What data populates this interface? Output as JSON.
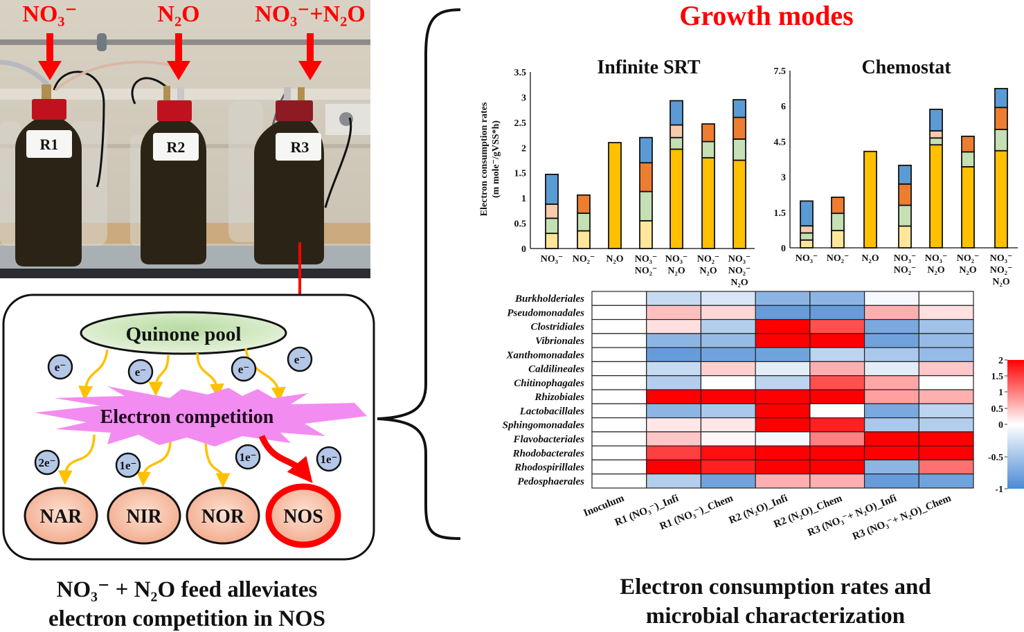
{
  "photo": {
    "feed_labels": [
      "NO₃⁻",
      "N₂O",
      "NO₃⁻+N₂O"
    ],
    "reactor_labels": [
      "R1",
      "R2",
      "R3"
    ]
  },
  "mechanism": {
    "quinone_pool": "Quinone pool",
    "electron": "e⁻",
    "competition": "Electron competition",
    "transfer_labels": [
      "2e⁻",
      "1e⁻",
      "1e⁻",
      "1e⁻"
    ],
    "enzymes": [
      "NAR",
      "NIR",
      "NOR",
      "NOS"
    ],
    "highlight_color": "#ff0000"
  },
  "left_caption": [
    "NO₃⁻ + N₂O feed alleviates",
    "electron competition in NOS"
  ],
  "right_caption": [
    "Electron consumption rates and",
    "microbial characterization"
  ],
  "growth_modes_title": "Growth modes",
  "segment_colors": [
    "#ffe699",
    "#ffc000",
    "#c5e0b4",
    "#f8cbad",
    "#ed7d31",
    "#5b9bd5"
  ],
  "chart_data": [
    {
      "type": "bar",
      "stacked": true,
      "title": "Infinite SRT",
      "ylabel": [
        "Electron consumption rates",
        "(m mole⁻/gVSS*h)"
      ],
      "ylim": [
        0,
        3.5
      ],
      "yticks": [
        "0",
        "0.5",
        "1",
        "1.5",
        "2",
        "2.5",
        "3",
        "3.5"
      ],
      "categories": [
        [
          "NO₃⁻"
        ],
        [
          "NO₂⁻"
        ],
        [
          "N₂O"
        ],
        [
          "NO₃⁻",
          "NO₂⁻"
        ],
        [
          "NO₃⁻",
          "N₂O"
        ],
        [
          "NO₂⁻",
          "N₂O"
        ],
        [
          "NO₃⁻",
          "NO₂⁻",
          "N₂O"
        ]
      ],
      "series": [
        {
          "color": "#ffe699",
          "values": [
            0.3,
            0.35,
            0,
            0.55,
            0,
            0,
            0
          ]
        },
        {
          "color": "#ffc000",
          "values": [
            0,
            0,
            2.1,
            0,
            1.97,
            1.8,
            1.75
          ]
        },
        {
          "color": "#c5e0b4",
          "values": [
            0.3,
            0.35,
            0,
            0.58,
            0.23,
            0.32,
            0.42
          ]
        },
        {
          "color": "#f8cbad",
          "values": [
            0.28,
            0,
            0,
            0,
            0.25,
            0,
            0
          ]
        },
        {
          "color": "#ed7d31",
          "values": [
            0,
            0.36,
            0,
            0.57,
            0,
            0.35,
            0.43
          ]
        },
        {
          "color": "#5b9bd5",
          "values": [
            0.59,
            0,
            0,
            0.5,
            0.48,
            0,
            0.35
          ]
        }
      ]
    },
    {
      "type": "bar",
      "stacked": true,
      "title": "Chemostat",
      "ylim": [
        0,
        7.5
      ],
      "yticks": [
        "0",
        "1.5",
        "3",
        "4.5",
        "6",
        "7.5"
      ],
      "categories": [
        [
          "NO₃⁻"
        ],
        [
          "NO₂⁻"
        ],
        [
          "N₂O"
        ],
        [
          "NO₃⁻",
          "NO₂⁻"
        ],
        [
          "NO₃⁻",
          "N₂O"
        ],
        [
          "NO₂⁻",
          "N₂O"
        ],
        [
          "NO₃⁻",
          "NO₂⁻",
          "N₂O"
        ]
      ],
      "series": [
        {
          "color": "#ffe699",
          "values": [
            0.33,
            0.73,
            0,
            0.92,
            0,
            0,
            0
          ]
        },
        {
          "color": "#ffc000",
          "values": [
            0,
            0,
            4.08,
            0,
            4.36,
            3.43,
            4.11
          ]
        },
        {
          "color": "#c5e0b4",
          "values": [
            0.3,
            0.73,
            0,
            0.88,
            0.29,
            0.63,
            0.9
          ]
        },
        {
          "color": "#f8cbad",
          "values": [
            0.3,
            0,
            0,
            0,
            0.3,
            0,
            0
          ]
        },
        {
          "color": "#ed7d31",
          "values": [
            0,
            0.68,
            0,
            0.9,
            0,
            0.66,
            0.93
          ]
        },
        {
          "color": "#5b9bd5",
          "values": [
            1.05,
            0,
            0,
            0.79,
            0.91,
            0,
            0.8
          ]
        }
      ]
    },
    {
      "type": "heatmap",
      "rows": [
        "Burkholderiales",
        "Pseudomonadales",
        "Clostridiales",
        "Vibrionales",
        "Xanthomonadales",
        "Caldilineales",
        "Chitinophagales",
        "Rhizobiales",
        "Lactobacillales",
        "Sphingomonadales",
        "Flavobacteriales",
        "Rhodobacterales",
        "Rhodospirillales",
        "Pedosphaerales"
      ],
      "columns": [
        "Inoculum",
        "R1 (NO₃⁻)_Infi",
        "R1 (NO₃⁻)_Chem",
        "R2 (N₂O)_Infi",
        "R2 (N₂O)_Chem",
        "R3 (NO₃⁻+ N₂O)_Infi",
        "R3 (NO₃⁻+ N₂O)_Chem"
      ],
      "values": [
        [
          0,
          -0.3,
          -0.2,
          -0.6,
          -0.6,
          -0.05,
          0
        ],
        [
          0,
          0.4,
          0.25,
          -0.8,
          -0.8,
          0.5,
          0.2
        ],
        [
          0,
          0.2,
          -0.4,
          2,
          1.1,
          -0.7,
          -0.5
        ],
        [
          0,
          -0.6,
          -0.55,
          2,
          2,
          -0.75,
          -0.55
        ],
        [
          0,
          -0.8,
          -0.75,
          -0.75,
          -0.35,
          -0.45,
          -0.55
        ],
        [
          0,
          -0.3,
          0.3,
          -0.15,
          0.5,
          -0.15,
          0.35
        ],
        [
          0,
          -0.4,
          0,
          -0.35,
          1.1,
          0.55,
          0
        ],
        [
          0,
          2,
          2,
          2,
          2,
          0.6,
          0.5
        ],
        [
          0,
          -0.6,
          -0.45,
          1.8,
          0,
          -0.7,
          -0.35
        ],
        [
          0,
          0.15,
          0.15,
          2,
          1.4,
          -0.45,
          -0.4
        ],
        [
          0,
          0.35,
          0.05,
          -0.05,
          0.8,
          2,
          2
        ],
        [
          0,
          1.2,
          1.5,
          2,
          2,
          2,
          2
        ],
        [
          0,
          1.6,
          1.4,
          2,
          2,
          -0.6,
          0.9
        ],
        [
          0,
          -0.4,
          -0.75,
          0.5,
          0.5,
          -0.8,
          -0.75
        ]
      ],
      "colorbar": {
        "ticks": [
          "2",
          "1.5",
          "1",
          "0.5",
          "0",
          "-0.5",
          "-1"
        ],
        "range": [
          -1,
          2
        ],
        "colors": {
          "max": "#ff0000",
          "mid": "#ffffff",
          "min": "#4a8ad4"
        }
      }
    }
  ]
}
